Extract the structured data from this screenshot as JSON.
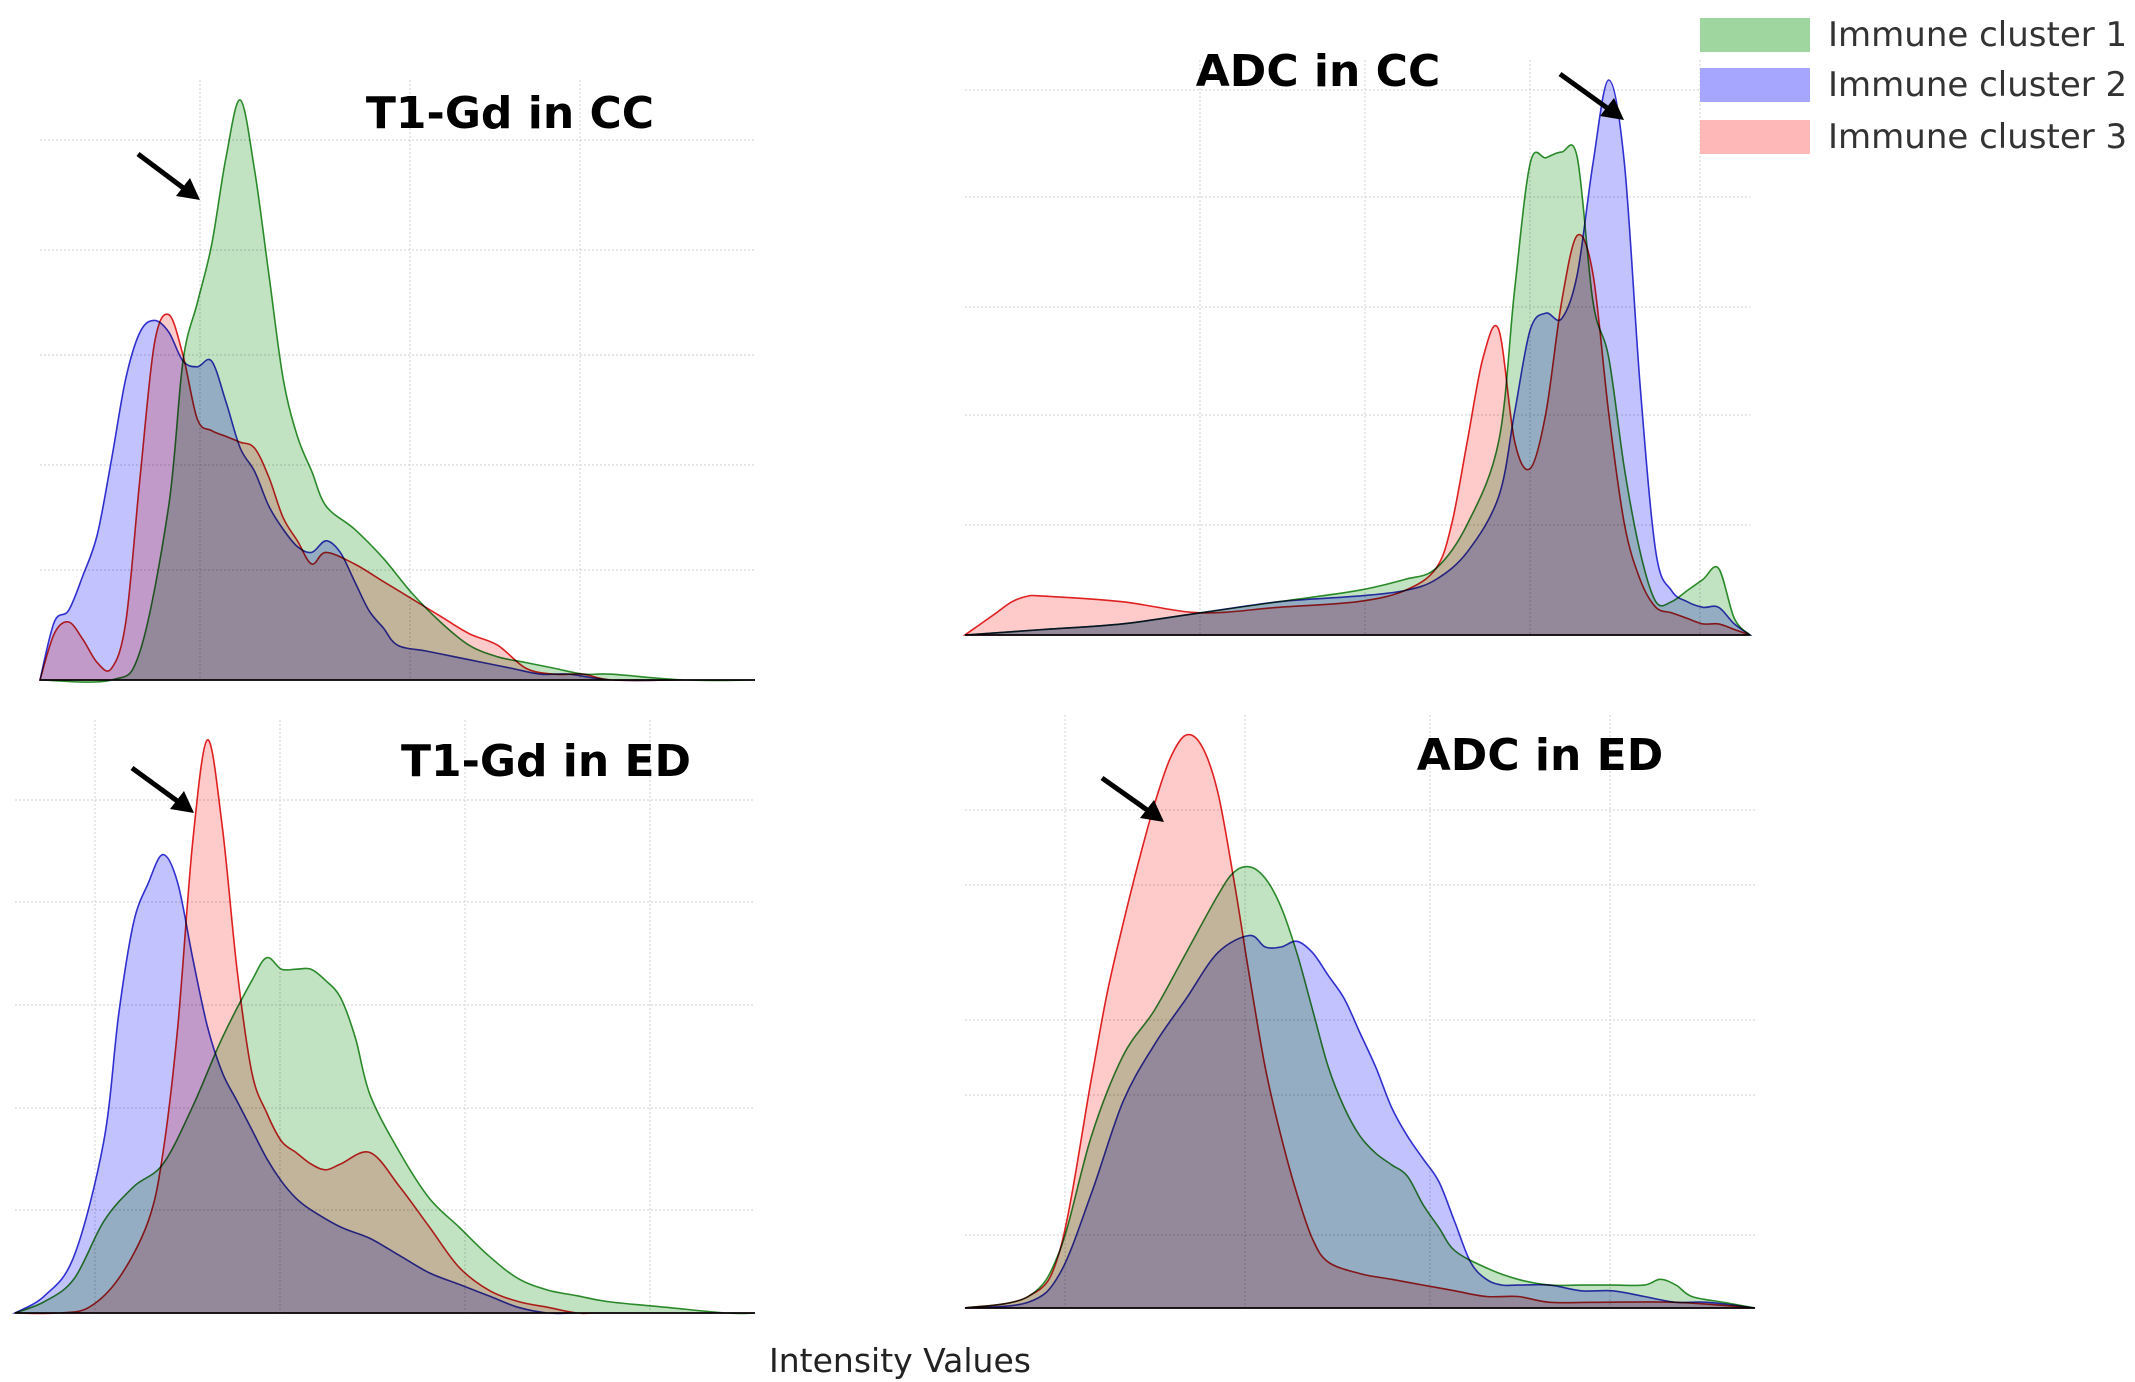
{
  "xlabel": "Intensity Values",
  "colors": {
    "green": "#8fcc8f",
    "blue": "#8f8fff",
    "red": "#ff9f9f",
    "green_line": "#2a8a2a",
    "blue_line": "#3030d0",
    "red_line": "#e02020",
    "overlap": "#7a4a55"
  },
  "legend": [
    {
      "label": "Immune cluster 1",
      "color": "#9fd69f"
    },
    {
      "label": "Immune cluster 2",
      "color": "#a6a6ff"
    },
    {
      "label": "Immune cluster 3",
      "color": "#ffb8b8"
    }
  ],
  "chart_data": [
    {
      "type": "area",
      "title": "T1-Gd in CC",
      "annotation": "arrow",
      "xlim": [
        0,
        100
      ],
      "ylim": [
        0,
        1.0
      ],
      "series": [
        {
          "name": "Immune cluster 1",
          "x": [
            0,
            10,
            14,
            18,
            20,
            22,
            24,
            26,
            28,
            30,
            32,
            34,
            36,
            38,
            40,
            44,
            48,
            52,
            56,
            60,
            64,
            68,
            72,
            76,
            80,
            90,
            100
          ],
          "y": [
            0,
            0,
            0.05,
            0.3,
            0.55,
            0.65,
            0.75,
            0.9,
            1.0,
            0.88,
            0.7,
            0.52,
            0.42,
            0.36,
            0.3,
            0.26,
            0.21,
            0.15,
            0.1,
            0.06,
            0.04,
            0.03,
            0.02,
            0.01,
            0.01,
            0,
            0
          ]
        },
        {
          "name": "Immune cluster 2",
          "x": [
            0,
            2,
            4,
            6,
            8,
            10,
            12,
            14,
            16,
            18,
            20,
            22,
            24,
            26,
            28,
            30,
            32,
            34,
            36,
            38,
            40,
            42,
            44,
            46,
            48,
            50,
            54,
            58,
            62,
            66,
            70,
            74,
            80,
            90,
            100
          ],
          "y": [
            0,
            0.1,
            0.12,
            0.18,
            0.25,
            0.38,
            0.52,
            0.6,
            0.62,
            0.6,
            0.55,
            0.54,
            0.55,
            0.48,
            0.4,
            0.36,
            0.3,
            0.26,
            0.23,
            0.22,
            0.24,
            0.22,
            0.17,
            0.12,
            0.09,
            0.06,
            0.05,
            0.04,
            0.03,
            0.02,
            0.01,
            0.01,
            0,
            0,
            0
          ]
        },
        {
          "name": "Immune cluster 3",
          "x": [
            0,
            2,
            4,
            6,
            8,
            10,
            12,
            14,
            16,
            18,
            20,
            22,
            24,
            26,
            28,
            30,
            32,
            34,
            36,
            38,
            40,
            44,
            48,
            52,
            56,
            60,
            64,
            68,
            72,
            76,
            80,
            90,
            100
          ],
          "y": [
            0,
            0.08,
            0.1,
            0.07,
            0.03,
            0.02,
            0.1,
            0.35,
            0.58,
            0.63,
            0.56,
            0.45,
            0.43,
            0.42,
            0.41,
            0.4,
            0.35,
            0.28,
            0.24,
            0.2,
            0.22,
            0.2,
            0.17,
            0.14,
            0.11,
            0.08,
            0.06,
            0.02,
            0.01,
            0.01,
            0,
            0,
            0
          ]
        }
      ]
    },
    {
      "type": "area",
      "title": "ADC in CC",
      "annotation": "arrow",
      "xlim": [
        0,
        100
      ],
      "ylim": [
        0,
        1.0
      ],
      "series": [
        {
          "name": "Immune cluster 1",
          "x": [
            0,
            10,
            20,
            30,
            40,
            50,
            56,
            60,
            64,
            68,
            70,
            72,
            74,
            76,
            78,
            80,
            82,
            84,
            86,
            88,
            90,
            92,
            94,
            96,
            98,
            100
          ],
          "y": [
            0,
            0.01,
            0.02,
            0.04,
            0.06,
            0.08,
            0.1,
            0.12,
            0.2,
            0.35,
            0.62,
            0.85,
            0.86,
            0.87,
            0.86,
            0.6,
            0.5,
            0.3,
            0.15,
            0.06,
            0.06,
            0.08,
            0.1,
            0.12,
            0.03,
            0
          ]
        },
        {
          "name": "Immune cluster 2",
          "x": [
            0,
            10,
            20,
            30,
            40,
            50,
            56,
            60,
            64,
            68,
            70,
            72,
            74,
            76,
            78,
            80,
            82,
            84,
            86,
            88,
            90,
            92,
            94,
            96,
            98,
            100
          ],
          "y": [
            0,
            0.01,
            0.02,
            0.04,
            0.06,
            0.07,
            0.08,
            0.1,
            0.15,
            0.25,
            0.4,
            0.55,
            0.58,
            0.57,
            0.65,
            0.85,
            1.0,
            0.85,
            0.45,
            0.15,
            0.08,
            0.06,
            0.05,
            0.05,
            0.02,
            0
          ]
        },
        {
          "name": "Immune cluster 3",
          "x": [
            0,
            2,
            4,
            6,
            8,
            10,
            20,
            30,
            40,
            50,
            56,
            60,
            62,
            64,
            66,
            68,
            70,
            72,
            74,
            76,
            78,
            80,
            82,
            84,
            86,
            88,
            90,
            92,
            94,
            96,
            98,
            100
          ],
          "y": [
            0,
            0.02,
            0.04,
            0.06,
            0.07,
            0.07,
            0.06,
            0.04,
            0.05,
            0.06,
            0.08,
            0.12,
            0.2,
            0.35,
            0.5,
            0.55,
            0.35,
            0.3,
            0.4,
            0.6,
            0.72,
            0.65,
            0.4,
            0.2,
            0.1,
            0.05,
            0.04,
            0.03,
            0.02,
            0.02,
            0.01,
            0
          ]
        }
      ]
    },
    {
      "type": "area",
      "title": "T1-Gd in ED",
      "annotation": "arrow",
      "xlim": [
        0,
        100
      ],
      "ylim": [
        0,
        1.0
      ],
      "series": [
        {
          "name": "Immune cluster 1",
          "x": [
            0,
            4,
            8,
            12,
            16,
            20,
            24,
            28,
            32,
            34,
            36,
            38,
            40,
            42,
            44,
            46,
            48,
            52,
            56,
            60,
            64,
            68,
            72,
            76,
            80,
            88,
            96,
            100
          ],
          "y": [
            0,
            0.02,
            0.06,
            0.16,
            0.22,
            0.26,
            0.36,
            0.48,
            0.58,
            0.62,
            0.6,
            0.6,
            0.6,
            0.58,
            0.55,
            0.48,
            0.38,
            0.28,
            0.2,
            0.15,
            0.1,
            0.06,
            0.04,
            0.03,
            0.02,
            0.01,
            0.0,
            0
          ]
        },
        {
          "name": "Immune cluster 2",
          "x": [
            0,
            4,
            8,
            12,
            14,
            16,
            18,
            20,
            22,
            24,
            26,
            28,
            30,
            32,
            34,
            36,
            38,
            40,
            44,
            48,
            52,
            56,
            60,
            64,
            68,
            72,
            76,
            80,
            100
          ],
          "y": [
            0,
            0.03,
            0.1,
            0.3,
            0.52,
            0.68,
            0.75,
            0.8,
            0.75,
            0.62,
            0.5,
            0.42,
            0.37,
            0.32,
            0.27,
            0.23,
            0.2,
            0.18,
            0.15,
            0.13,
            0.1,
            0.07,
            0.05,
            0.03,
            0.01,
            0.0,
            0,
            0,
            0
          ]
        },
        {
          "name": "Immune cluster 3",
          "x": [
            0,
            6,
            10,
            14,
            18,
            20,
            22,
            24,
            26,
            28,
            30,
            32,
            34,
            36,
            38,
            40,
            42,
            44,
            48,
            52,
            56,
            60,
            64,
            68,
            72,
            76,
            80,
            100
          ],
          "y": [
            0,
            0.0,
            0.01,
            0.06,
            0.16,
            0.28,
            0.5,
            0.82,
            1.0,
            0.85,
            0.6,
            0.42,
            0.35,
            0.3,
            0.28,
            0.26,
            0.25,
            0.26,
            0.28,
            0.22,
            0.15,
            0.08,
            0.04,
            0.02,
            0.01,
            0,
            0,
            0
          ]
        }
      ]
    },
    {
      "type": "area",
      "title": "ADC in ED",
      "annotation": "arrow",
      "xlim": [
        0,
        100
      ],
      "ylim": [
        0,
        1.0
      ],
      "series": [
        {
          "name": "Immune cluster 1",
          "x": [
            0,
            8,
            12,
            16,
            20,
            24,
            28,
            32,
            34,
            36,
            38,
            40,
            42,
            44,
            46,
            48,
            50,
            52,
            54,
            56,
            58,
            60,
            62,
            66,
            70,
            74,
            78,
            82,
            86,
            88,
            90,
            92,
            96,
            100
          ],
          "y": [
            0,
            0.02,
            0.1,
            0.3,
            0.44,
            0.52,
            0.62,
            0.72,
            0.76,
            0.77,
            0.75,
            0.7,
            0.62,
            0.52,
            0.42,
            0.35,
            0.3,
            0.27,
            0.25,
            0.23,
            0.18,
            0.14,
            0.1,
            0.07,
            0.05,
            0.04,
            0.04,
            0.04,
            0.04,
            0.05,
            0.04,
            0.02,
            0.01,
            0
          ]
        },
        {
          "name": "Immune cluster 2",
          "x": [
            0,
            8,
            12,
            16,
            20,
            24,
            28,
            32,
            36,
            38,
            40,
            42,
            44,
            46,
            48,
            50,
            52,
            54,
            56,
            58,
            60,
            62,
            64,
            66,
            68,
            70,
            74,
            78,
            82,
            86,
            90,
            94,
            100
          ],
          "y": [
            0,
            0.01,
            0.06,
            0.2,
            0.36,
            0.46,
            0.54,
            0.62,
            0.65,
            0.63,
            0.63,
            0.64,
            0.62,
            0.58,
            0.54,
            0.48,
            0.42,
            0.35,
            0.3,
            0.26,
            0.22,
            0.15,
            0.08,
            0.05,
            0.04,
            0.04,
            0.04,
            0.03,
            0.03,
            0.02,
            0.01,
            0.01,
            0
          ]
        },
        {
          "name": "Immune cluster 3",
          "x": [
            0,
            8,
            12,
            16,
            18,
            20,
            22,
            24,
            26,
            28,
            30,
            32,
            34,
            36,
            38,
            40,
            42,
            44,
            46,
            50,
            54,
            58,
            62,
            66,
            70,
            74,
            80,
            90,
            100
          ],
          "y": [
            0,
            0.02,
            0.1,
            0.4,
            0.55,
            0.67,
            0.78,
            0.88,
            0.96,
            1.0,
            0.98,
            0.9,
            0.75,
            0.58,
            0.42,
            0.3,
            0.2,
            0.12,
            0.08,
            0.06,
            0.05,
            0.04,
            0.03,
            0.02,
            0.02,
            0.01,
            0.01,
            0.01,
            0
          ]
        }
      ]
    }
  ]
}
